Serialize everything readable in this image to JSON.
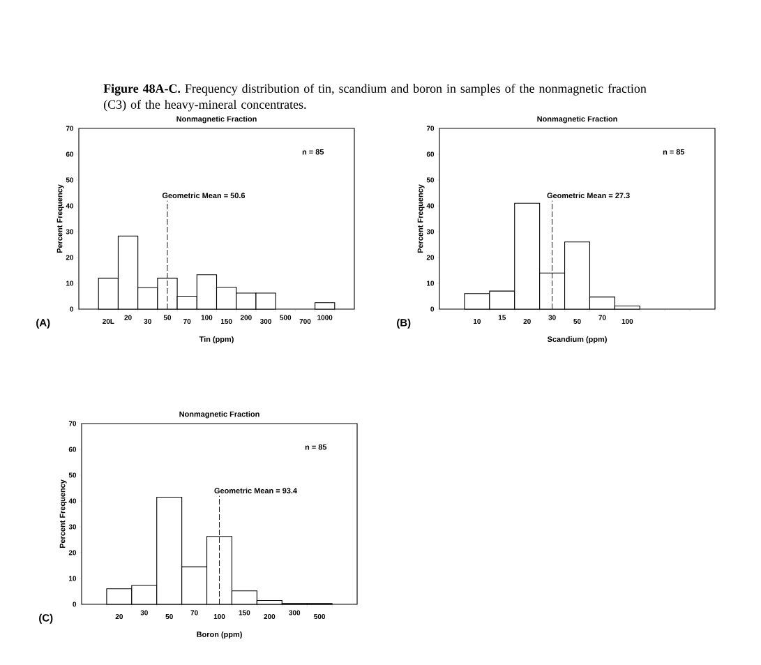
{
  "chart_data": [
    {
      "type": "other",
      "title": "**Figure 48A-C.** Frequency distribution of tin, scandium and boron in samples of the nonmagnetic fraction (C3) of the heavy-mineral concentrates."
    },
    {
      "type": "bar",
      "title": "Nonmagnetic Fraction",
      "xlabel": "Tin (ppm)",
      "ylabel": "Percent Frequency",
      "color": "#ffffff",
      "categories": [
        null,
        "20L",
        "20",
        "30",
        "50",
        "70",
        "100",
        "150",
        "200",
        "300",
        "500",
        "700",
        "1000",
        null
      ],
      "values": [
        null,
        12,
        28.3,
        8.3,
        12,
        5,
        13.3,
        8.5,
        6.2,
        6.2,
        null,
        null,
        2.5,
        null
      ],
      "ylim": [
        0,
        70
      ],
      "yticks": [
        0,
        10,
        20,
        30,
        40,
        50,
        60,
        70
      ],
      "ref_lines": [
        {
          "axis": "x",
          "value": "50",
          "label": "Geometric Mean = 50.6",
          "line_style": "dashed"
        }
      ],
      "annotations": [
        "n = 85",
        "(A)"
      ]
    },
    {
      "type": "bar",
      "title": "Nonmagnetic Fraction",
      "xlabel": "Scandium (ppm)",
      "ylabel": "Percent Frequency",
      "color": "#ffffff",
      "categories": [
        null,
        "10",
        "15",
        "20",
        "30",
        "50",
        "70",
        "100",
        null,
        null,
        null
      ],
      "values": [
        null,
        6,
        7,
        41,
        14,
        26,
        4.7,
        1.2,
        null,
        null,
        null
      ],
      "ylim": [
        0,
        70
      ],
      "yticks": [
        0,
        10,
        20,
        30,
        40,
        50,
        60,
        70
      ],
      "ref_lines": [
        {
          "axis": "x",
          "value": "30",
          "label": "Geometric Mean = 27.3",
          "line_style": "dashed"
        }
      ],
      "annotations": [
        "n = 85",
        "(B)"
      ]
    },
    {
      "type": "bar",
      "title": "Nonmagnetic Fraction",
      "xlabel": "Boron (ppm)",
      "ylabel": "Percent Frequency",
      "color": "#ffffff",
      "categories": [
        null,
        "20",
        "30",
        "50",
        "70",
        "100",
        "150",
        "200",
        "300",
        "500",
        null
      ],
      "values": [
        null,
        6,
        7.3,
        41.5,
        14.5,
        26.3,
        5.2,
        1.5,
        0.3,
        0.3,
        null
      ],
      "ylim": [
        0,
        70
      ],
      "yticks": [
        0,
        10,
        20,
        30,
        40,
        50,
        60,
        70
      ],
      "ref_lines": [
        {
          "axis": "x",
          "value": "100",
          "label": "Geometric Mean = 93.4",
          "line_style": "dashed"
        }
      ],
      "annotations": [
        "n = 85",
        "(C)"
      ]
    }
  ]
}
